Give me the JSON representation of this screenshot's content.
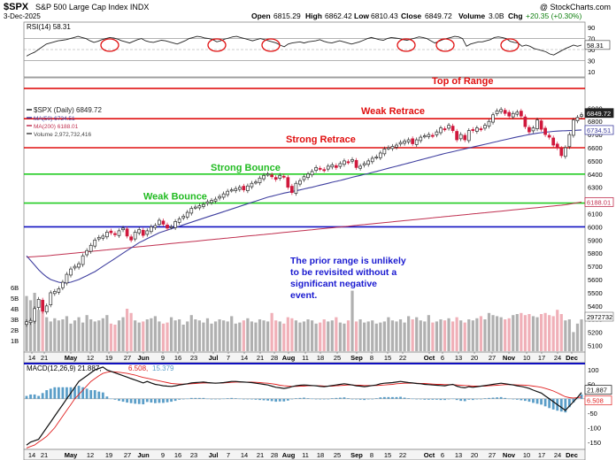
{
  "header": {
    "symbol": "$SPX",
    "name": "S&P 500 Large Cap Index  INDX",
    "watermark": "@ StockCharts.com",
    "date": "3-Dec-2025",
    "open_label": "Open",
    "open": "6815.29",
    "high_label": "High",
    "high": "6862.42",
    "low_label": "Low",
    "low": "6810.43",
    "close_label": "Close",
    "close": "6849.72",
    "volume_label": "Volume",
    "volume": "3.0B",
    "chg_label": "Chg",
    "chg": "+20.35 (+0.30%)"
  },
  "colors": {
    "up": "#2a2a2a",
    "down": "#d0183c",
    "ma50": "#4040a0",
    "ma200": "#c03050",
    "range_red": "#e01010",
    "green": "#22cc22",
    "blue": "#1010c0",
    "annotation_red": "#e01010",
    "annotation_green": "#22bb22",
    "annotation_blue": "#1a1ad0",
    "macd_hist": "#5b9ec8",
    "signal": "#e02020",
    "volume_up": "#b0b0b0",
    "volume_down": "#f0b0b8"
  },
  "chart_data": [
    {
      "type": "line",
      "panel": "rsi",
      "title": "RSI(14) 58.31",
      "y_ticks": [
        10,
        30,
        50,
        70,
        90
      ],
      "ylim": [
        0,
        100
      ],
      "overbought": 70,
      "oversold": 30,
      "last_label": "58.31",
      "values": [
        38,
        42,
        45,
        50,
        55,
        60,
        62,
        64,
        66,
        67,
        68,
        70,
        72,
        74,
        72,
        70,
        66,
        63,
        65,
        68,
        70,
        72,
        71,
        69,
        66,
        64,
        62,
        65,
        68,
        70,
        66,
        64,
        63,
        65,
        67,
        66,
        64,
        62,
        60,
        63,
        66,
        70,
        72,
        74,
        73,
        71,
        70,
        68,
        64,
        66,
        69,
        71,
        73,
        74,
        72,
        70,
        68,
        66,
        68,
        70,
        68,
        66,
        64,
        62,
        58,
        55,
        60,
        62,
        63,
        64,
        62,
        64,
        65,
        66,
        68,
        65,
        63,
        62,
        64,
        66,
        64,
        62,
        60,
        62,
        64,
        67,
        70,
        72,
        70,
        68,
        67,
        70,
        72,
        71,
        70,
        68,
        67,
        69,
        71,
        73,
        72,
        70,
        66,
        62,
        65,
        68,
        70,
        72,
        74,
        73,
        70,
        56,
        60,
        62,
        64,
        64,
        66,
        68,
        72,
        73,
        72,
        70,
        65,
        63,
        62,
        56,
        58,
        56,
        52,
        50,
        48,
        46,
        42,
        40,
        44,
        48,
        52,
        55,
        58,
        56,
        58
      ]
    },
    {
      "type": "candlestick",
      "panel": "price",
      "title": "$SPX (Daily) 6849.72",
      "legend": [
        "$SPX (Daily) 6849.72",
        "MA(50) 6734.51",
        "MA(200) 6188.01",
        "Volume 2,972,732,416"
      ],
      "y_ticks": [
        5100,
        5200,
        5300,
        5400,
        5500,
        5600,
        5700,
        5800,
        5900,
        6000,
        6100,
        6200,
        6300,
        6400,
        6500,
        6600,
        6700,
        6800,
        6900
      ],
      "ylim": [
        5100,
        6950
      ],
      "x_ticks": [
        "14",
        "21",
        "May",
        "12",
        "19",
        "27",
        "Jun",
        "9",
        "16",
        "23",
        "Jul",
        "7",
        "14",
        "21",
        "28",
        "Aug",
        "11",
        "18",
        "25",
        "Sep",
        "8",
        "15",
        "22",
        "Oct",
        "6",
        "13",
        "20",
        "27",
        "Nov",
        "10",
        "17",
        "24",
        "Dec"
      ],
      "close": [
        5280,
        5290,
        5380,
        5450,
        5360,
        5400,
        5500,
        5510,
        5530,
        5580,
        5640,
        5680,
        5700,
        5720,
        5780,
        5820,
        5860,
        5900,
        5920,
        5930,
        5960,
        5955,
        5940,
        5970,
        5990,
        5930,
        5900,
        5960,
        5980,
        5935,
        5970,
        6000,
        6010,
        6050,
        6020,
        5990,
        6000,
        6040,
        6060,
        6080,
        6110,
        6140,
        6150,
        6160,
        6170,
        6190,
        6200,
        6210,
        6230,
        6250,
        6270,
        6280,
        6290,
        6300,
        6280,
        6310,
        6330,
        6340,
        6370,
        6390,
        6400,
        6380,
        6360,
        6390,
        6380,
        6300,
        6260,
        6330,
        6350,
        6380,
        6400,
        6420,
        6450,
        6440,
        6430,
        6460,
        6470,
        6450,
        6480,
        6500,
        6490,
        6510,
        6450,
        6460,
        6480,
        6500,
        6520,
        6530,
        6560,
        6590,
        6600,
        6610,
        6620,
        6640,
        6650,
        6660,
        6630,
        6660,
        6680,
        6690,
        6700,
        6690,
        6720,
        6750,
        6740,
        6770,
        6730,
        6660,
        6700,
        6660,
        6730,
        6730,
        6750,
        6740,
        6770,
        6800,
        6850,
        6880,
        6890,
        6860,
        6840,
        6860,
        6870,
        6840,
        6760,
        6720,
        6750,
        6810,
        6740,
        6700,
        6680,
        6620,
        6600,
        6540,
        6600,
        6700,
        6810,
        6830,
        6850
      ],
      "ma50": [
        5780,
        5745,
        5710,
        5675,
        5645,
        5620,
        5600,
        5590,
        5580,
        5575,
        5575,
        5580,
        5590,
        5600,
        5615,
        5630,
        5645,
        5660,
        5680,
        5700,
        5720,
        5740,
        5760,
        5780,
        5800,
        5820,
        5840,
        5860,
        5880,
        5895,
        5910,
        5925,
        5940,
        5955,
        5965,
        5975,
        5985,
        5995,
        6005,
        6015,
        6025,
        6035,
        6045,
        6055,
        6065,
        6075,
        6085,
        6095,
        6105,
        6115,
        6125,
        6135,
        6145,
        6155,
        6165,
        6175,
        6185,
        6195,
        6205,
        6215,
        6225,
        6232,
        6240,
        6248,
        6256,
        6262,
        6268,
        6274,
        6280,
        6287,
        6294,
        6300,
        6308,
        6316,
        6323,
        6330,
        6338,
        6345,
        6352,
        6360,
        6368,
        6376,
        6383,
        6390,
        6398,
        6405,
        6413,
        6420,
        6428,
        6436,
        6444,
        6452,
        6460,
        6468,
        6476,
        6484,
        6492,
        6500,
        6508,
        6516,
        6524,
        6532,
        6540,
        6548,
        6556,
        6563,
        6570,
        6577,
        6584,
        6591,
        6598,
        6605,
        6612,
        6619,
        6626,
        6633,
        6640,
        6647,
        6654,
        6661,
        6668,
        6675,
        6682,
        6688,
        6694,
        6700,
        6705,
        6710,
        6714,
        6718,
        6721,
        6724,
        6726,
        6728,
        6729,
        6730,
        6731,
        6733,
        6734.51
      ],
      "ma200": [
        5770,
        5772,
        5774,
        5776,
        5778,
        5780,
        5783,
        5786,
        5789,
        5792,
        5795,
        5798,
        5801,
        5804,
        5807,
        5810,
        5813,
        5816,
        5819,
        5822,
        5825,
        5828,
        5831,
        5834,
        5837,
        5840,
        5843,
        5846,
        5849,
        5852,
        5855,
        5858,
        5861,
        5864,
        5867,
        5870,
        5873,
        5876,
        5879,
        5882,
        5885,
        5888,
        5891,
        5894,
        5897,
        5900,
        5903,
        5906,
        5909,
        5912,
        5915,
        5918,
        5921,
        5924,
        5927,
        5930,
        5933,
        5936,
        5939,
        5942,
        5945,
        5948,
        5951,
        5954,
        5957,
        5960,
        5963,
        5966,
        5969,
        5972,
        5975,
        5978,
        5981,
        5984,
        5987,
        5990,
        5993,
        5996,
        5999,
        6002,
        6005,
        6008,
        6011,
        6014,
        6017,
        6020,
        6023,
        6026,
        6029,
        6032,
        6035,
        6038,
        6041,
        6044,
        6047,
        6050,
        6053,
        6056,
        6059,
        6062,
        6065,
        6068,
        6071,
        6074,
        6077,
        6080,
        6083,
        6086,
        6089,
        6092,
        6095,
        6098,
        6101,
        6104,
        6107,
        6110,
        6113,
        6116,
        6119,
        6122,
        6125,
        6128,
        6131,
        6134,
        6137,
        6140,
        6143,
        6146,
        6149,
        6152,
        6155,
        6158,
        6161,
        6164,
        6167,
        6172,
        6177,
        6183,
        6188.01
      ],
      "hlines": [
        {
          "value": 7050,
          "color": "#e01010",
          "label": "Top of Range"
        },
        {
          "value": 6820,
          "color": "#e01010",
          "label": "Weak Retrace"
        },
        {
          "value": 6600,
          "color": "#e01010",
          "label": "Strong Retrace"
        },
        {
          "value": 6400,
          "color": "#22cc22",
          "label": "Strong Bounce"
        },
        {
          "value": 6180,
          "color": "#22cc22",
          "label": "Weak Bounce"
        },
        {
          "value": 6000,
          "color": "#1010c0",
          "label": ""
        }
      ],
      "annotation": "The prior range is unlikely to be revisited without a significant negative event.",
      "annotation_lines": [
        "The prior range is unlikely",
        "to be revisited without a",
        "significant negative",
        "event."
      ],
      "last_labels": [
        "6849.72",
        "6734.51",
        "6188.01"
      ],
      "volume_ticks": [
        "1B",
        "2B",
        "3B",
        "4B",
        "5B",
        "6B"
      ],
      "volume_label": "2972732",
      "volume": [
        5.2,
        4.8,
        5.5,
        3.9,
        4.4,
        3.2,
        2.8,
        3.1,
        2.9,
        3.0,
        3.3,
        2.6,
        2.9,
        3.2,
        2.7,
        3.4,
        3.0,
        2.8,
        2.9,
        3.1,
        3.4,
        2.6,
        2.5,
        2.9,
        3.2,
        4.0,
        3.6,
        2.9,
        2.7,
        2.8,
        3.0,
        3.1,
        3.3,
        2.8,
        2.6,
        2.7,
        3.2,
        2.9,
        3.0,
        2.5,
        2.8,
        3.4,
        3.0,
        2.9,
        2.7,
        3.1,
        2.6,
        2.8,
        3.0,
        2.9,
        2.8,
        3.3,
        2.6,
        2.7,
        2.9,
        3.1,
        2.8,
        2.7,
        3.0,
        2.9,
        2.8,
        3.6,
        2.9,
        2.8,
        2.6,
        3.2,
        3.1,
        2.9,
        2.7,
        2.8,
        3.0,
        2.9,
        2.6,
        2.7,
        3.0,
        2.8,
        2.9,
        3.2,
        2.7,
        2.6,
        2.9,
        5.7,
        2.8,
        3.0,
        2.7,
        2.8,
        2.9,
        2.6,
        2.7,
        2.8,
        3.2,
        2.9,
        2.8,
        3.0,
        2.7,
        3.3,
        3.0,
        3.2,
        2.9,
        2.8,
        3.4,
        2.7,
        2.8,
        3.0,
        2.9,
        3.1,
        2.8,
        3.2,
        2.9,
        2.7,
        3.0,
        2.9,
        3.1,
        3.3,
        3.0,
        3.6,
        3.4,
        3.3,
        3.2,
        3.0,
        3.1,
        3.4,
        3.5,
        3.6,
        3.4,
        3.5,
        3.3,
        3.2,
        3.5,
        3.6,
        3.4,
        3.3,
        3.9,
        3.5,
        2.9,
        3.0,
        1.8,
        2.6,
        3.0
      ]
    },
    {
      "type": "line",
      "panel": "macd",
      "title": "MACD(12,26,9) 21.887, 6.508, 15.379",
      "title_main": "MACD(12,26,9) 21.887,",
      "title_signal": "6.508,",
      "title_hist": "15.379",
      "y_ticks": [
        -150,
        -100,
        -50,
        0,
        50,
        100
      ],
      "ylim": [
        -175,
        125
      ],
      "last_labels": [
        "21.887",
        "6.508"
      ],
      "macd": [
        -160,
        -150,
        -145,
        -140,
        -120,
        -100,
        -80,
        -60,
        -40,
        -20,
        0,
        20,
        40,
        60,
        70,
        80,
        90,
        100,
        105,
        110,
        100,
        95,
        90,
        85,
        80,
        75,
        70,
        65,
        60,
        55,
        60,
        55,
        50,
        48,
        45,
        44,
        43,
        45,
        48,
        50,
        52,
        55,
        56,
        57,
        58,
        56,
        55,
        54,
        55,
        56,
        58,
        60,
        60,
        59,
        58,
        57,
        56,
        54,
        52,
        50,
        48,
        44,
        40,
        38,
        36,
        38,
        42,
        45,
        47,
        48,
        47,
        46,
        45,
        43,
        42,
        44,
        46,
        48,
        50,
        52,
        50,
        48,
        45,
        44,
        42,
        44,
        46,
        48,
        52,
        54,
        55,
        56,
        58,
        60,
        58,
        56,
        55,
        53,
        52,
        50,
        49,
        48,
        47,
        46,
        45,
        48,
        50,
        44,
        40,
        38,
        42,
        40,
        42,
        44,
        46,
        48,
        50,
        52,
        54,
        52,
        50,
        48,
        45,
        43,
        40,
        36,
        30,
        25,
        20,
        10,
        0,
        -10,
        -20,
        -30,
        -40,
        -25,
        -10,
        5,
        21.887
      ],
      "signal": [
        -170,
        -165,
        -160,
        -150,
        -140,
        -130,
        -115,
        -100,
        -80,
        -60,
        -40,
        -20,
        0,
        15,
        30,
        45,
        60,
        70,
        80,
        88,
        92,
        94,
        93,
        92,
        90,
        88,
        85,
        82,
        78,
        74,
        71,
        68,
        65,
        62,
        59,
        56,
        53,
        52,
        51,
        51,
        51,
        52,
        53,
        54,
        55,
        55,
        55,
        55,
        55,
        55,
        56,
        57,
        58,
        58,
        58,
        58,
        58,
        57,
        56,
        55,
        54,
        52,
        50,
        47,
        45,
        44,
        43,
        43,
        44,
        44,
        45,
        45,
        45,
        45,
        44,
        44,
        44,
        45,
        46,
        47,
        48,
        48,
        47,
        47,
        46,
        46,
        46,
        46,
        47,
        48,
        49,
        50,
        52,
        53,
        54,
        54,
        54,
        54,
        53,
        53,
        52,
        51,
        50,
        50,
        49,
        49,
        49,
        48,
        47,
        46,
        45,
        44,
        44,
        44,
        44,
        45,
        46,
        47,
        48,
        49,
        49,
        49,
        48,
        48,
        47,
        46,
        44,
        42,
        40,
        36,
        32,
        27,
        21,
        14,
        7,
        4,
        3,
        4,
        6.508
      ]
    }
  ]
}
